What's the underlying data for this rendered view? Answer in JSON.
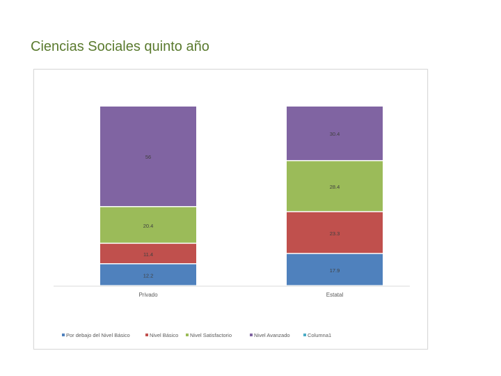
{
  "title": "Ciencias Sociales quinto año",
  "colors": {
    "series": [
      "#4f81bd",
      "#c0504d",
      "#9bbb59",
      "#8064a2",
      "#4bacc6"
    ]
  },
  "chart_data": {
    "type": "bar",
    "stacked": true,
    "categories": [
      "Privado",
      "Estatal"
    ],
    "series": [
      {
        "name": "Por debajo del Nivel Básico",
        "values": [
          12.2,
          17.9
        ]
      },
      {
        "name": "Nivel Básico",
        "values": [
          11.4,
          23.3
        ]
      },
      {
        "name": "Nivel Satisfactorio",
        "values": [
          20.4,
          28.4
        ]
      },
      {
        "name": "Nivel Avanzado",
        "values": [
          56,
          30.4
        ]
      },
      {
        "name": "Columna1",
        "values": [
          null,
          null
        ]
      }
    ],
    "data_labels": [
      [
        "12.2",
        "17.9"
      ],
      [
        "11.4",
        "23.3"
      ],
      [
        "20.4",
        "28.4"
      ],
      [
        "56",
        "30.4"
      ],
      [
        "",
        ""
      ]
    ],
    "ylim": [
      0,
      100
    ],
    "grid": false,
    "legend_position": "bottom",
    "xlabel": "",
    "ylabel": ""
  }
}
